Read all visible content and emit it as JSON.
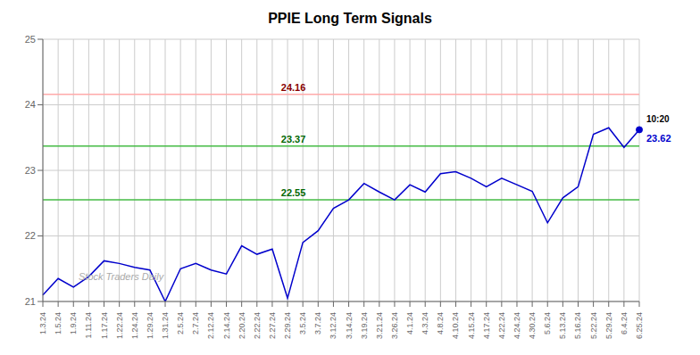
{
  "chart_data": {
    "type": "line",
    "title": "PPIE Long Term Signals",
    "categories": [
      "1.3.24",
      "1.5.24",
      "1.9.24",
      "1.11.24",
      "1.17.24",
      "1.22.24",
      "1.24.24",
      "1.29.24",
      "1.31.24",
      "2.5.24",
      "2.7.24",
      "2.12.24",
      "2.14.24",
      "2.20.24",
      "2.22.24",
      "2.27.24",
      "2.29.24",
      "3.5.24",
      "3.7.24",
      "3.12.24",
      "3.14.24",
      "3.19.24",
      "3.21.24",
      "3.26.24",
      "4.1.24",
      "4.3.24",
      "4.8.24",
      "4.10.24",
      "4.15.24",
      "4.17.24",
      "4.22.24",
      "4.24.24",
      "4.30.24",
      "5.6.24",
      "5.13.24",
      "5.16.24",
      "5.22.24",
      "5.29.24",
      "6.4.24",
      "6.25.24"
    ],
    "values": [
      21.1,
      21.35,
      21.22,
      21.38,
      21.62,
      21.58,
      21.52,
      21.48,
      21.0,
      21.5,
      21.58,
      21.48,
      21.42,
      21.85,
      21.72,
      21.8,
      21.05,
      21.9,
      22.08,
      22.42,
      22.55,
      22.8,
      22.67,
      22.55,
      22.78,
      22.67,
      22.95,
      22.98,
      22.88,
      22.75,
      22.88,
      22.78,
      22.68,
      22.2,
      22.58,
      22.75,
      23.55,
      23.65,
      23.35,
      23.62
    ],
    "color": "#0000cc",
    "ylim": [
      21,
      25
    ],
    "yticks": [
      21,
      22,
      23,
      24,
      25
    ],
    "grid": true,
    "annotations": [
      {
        "text": "24.16",
        "y": 24.16,
        "color": "#880000",
        "line_color": "#ffaaaa"
      },
      {
        "text": "23.37",
        "y": 23.37,
        "color": "#006600",
        "line_color": "#44bb44"
      },
      {
        "text": "22.55",
        "y": 22.55,
        "color": "#006600",
        "line_color": "#44bb44"
      },
      {
        "text": "Stock Traders Daily",
        "color": "#aaaaaa"
      },
      {
        "text": "10:20",
        "x": "6.25.24"
      },
      {
        "text": "23.62",
        "x": "6.25.24",
        "color": "#0000cc"
      }
    ]
  }
}
